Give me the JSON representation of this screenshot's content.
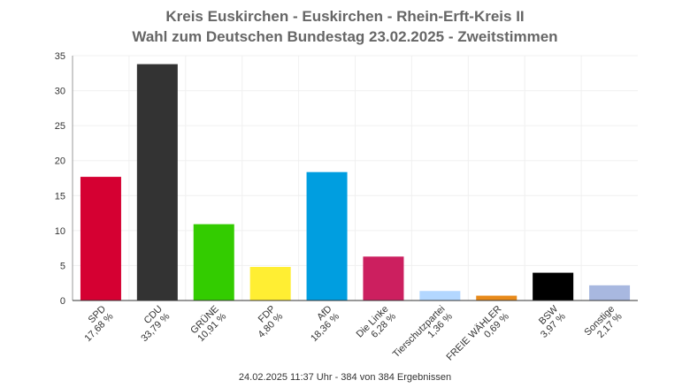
{
  "title_line1": "Kreis Euskirchen - Euskirchen - Rhein-Erft-Kreis II",
  "title_line2": "Wahl zum Deutschen Bundestag 23.02.2025  - Zweitstimmen",
  "footer": "24.02.2025 11:37 Uhr - 384 von 384 Ergebnissen",
  "chart_data": {
    "type": "bar",
    "title": "Kreis Euskirchen - Euskirchen - Rhein-Erft-Kreis II / Wahl zum Deutschen Bundestag 23.02.2025  - Zweitstimmen",
    "xlabel": "",
    "ylabel": "",
    "ylim": [
      0,
      35
    ],
    "yticks": [
      0,
      5,
      10,
      15,
      20,
      25,
      30,
      35
    ],
    "grid": true,
    "legend": "none",
    "categories": [
      "SPD",
      "CDU",
      "GRÜNE",
      "FDP",
      "AfD",
      "Die Linke",
      "Tierschutzpartei",
      "FREIE WÄHLER",
      "BSW",
      "Sonstige"
    ],
    "value_labels": [
      "17,68 %",
      "33,79 %",
      "10,91 %",
      "4,80 %",
      "18,36 %",
      "6,28 %",
      "1,36 %",
      "0,69 %",
      "3,97 %",
      "2,17 %"
    ],
    "values": [
      17.68,
      33.79,
      10.91,
      4.8,
      18.36,
      6.28,
      1.36,
      0.69,
      3.97,
      2.17
    ],
    "colors": [
      "#d50032",
      "#333333",
      "#33cc00",
      "#ffee33",
      "#009ee0",
      "#cc1f5f",
      "#b3d7ff",
      "#e88a1a",
      "#000000",
      "#a8b8e0"
    ]
  }
}
